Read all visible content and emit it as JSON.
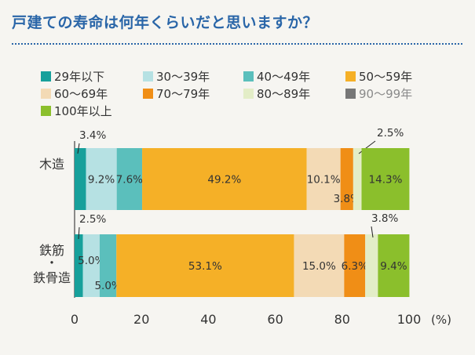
{
  "title": "戸建ての寿命は何年くらいだと思いますか？",
  "chart_data": {
    "type": "bar",
    "orientation": "horizontal",
    "stacked": true,
    "categories": [
      "木造",
      "鉄筋・鉄骨造"
    ],
    "category_lines": [
      [
        "木造"
      ],
      [
        "鉄筋",
        "・",
        "鉄骨造"
      ]
    ],
    "series": [
      {
        "name": "29年以下",
        "color": "#17a09b",
        "values": [
          3.4,
          2.5
        ]
      },
      {
        "name": "30〜39年",
        "color": "#b6e1e3",
        "values": [
          9.2,
          5.0
        ]
      },
      {
        "name": "40〜49年",
        "color": "#5bbfbc",
        "values": [
          7.6,
          5.0
        ]
      },
      {
        "name": "50〜59年",
        "color": "#f5b027",
        "values": [
          49.2,
          53.1
        ]
      },
      {
        "name": "60〜69年",
        "color": "#f3dab5",
        "values": [
          10.1,
          15.0
        ]
      },
      {
        "name": "70〜79年",
        "color": "#f08e16",
        "values": [
          3.8,
          6.3
        ]
      },
      {
        "name": "80〜89年",
        "color": "#e3edc7",
        "values": [
          2.5,
          3.8
        ]
      },
      {
        "name": "90〜99年",
        "color": "#777777",
        "values": [
          0,
          0
        ]
      },
      {
        "name": "100年以上",
        "color": "#8bbf2c",
        "values": [
          14.3,
          9.4
        ]
      }
    ],
    "data_labels": [
      [
        "3.4%",
        "9.2%",
        "7.6%",
        "49.2%",
        "10.1%",
        "3.8%",
        "2.5%",
        "",
        "14.3%"
      ],
      [
        "2.5%",
        "5.0%",
        "5.0%",
        "53.1%",
        "15.0%",
        "6.3%",
        "3.8%",
        "",
        "9.4%"
      ]
    ],
    "x_ticks": [
      "0",
      "20",
      "40",
      "60",
      "80",
      "100"
    ],
    "x_unit": "(%)",
    "xlim": [
      0,
      100
    ],
    "grid": false,
    "legend_position": "top"
  }
}
